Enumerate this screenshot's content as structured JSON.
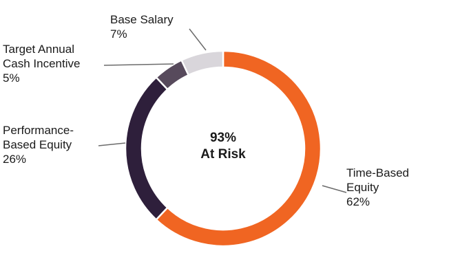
{
  "chart_data": {
    "type": "pie",
    "center_label": {
      "line1": "93%",
      "line2": "At Risk"
    },
    "slices": [
      {
        "key": "time",
        "label_lines": [
          "Time-Based",
          "Equity",
          "62%"
        ],
        "value": 62,
        "color": "#f06522"
      },
      {
        "key": "perf",
        "label_lines": [
          "Performance-",
          "Based Equity",
          "26%"
        ],
        "value": 26,
        "color": "#2e1f3b"
      },
      {
        "key": "tai",
        "label_lines": [
          "Target Annual",
          "Cash Incentive",
          "5%"
        ],
        "value": 5,
        "color": "#574a5c"
      },
      {
        "key": "base",
        "label_lines": [
          "Base Salary",
          "7%"
        ],
        "value": 7,
        "color": "#d9d6db"
      }
    ]
  }
}
